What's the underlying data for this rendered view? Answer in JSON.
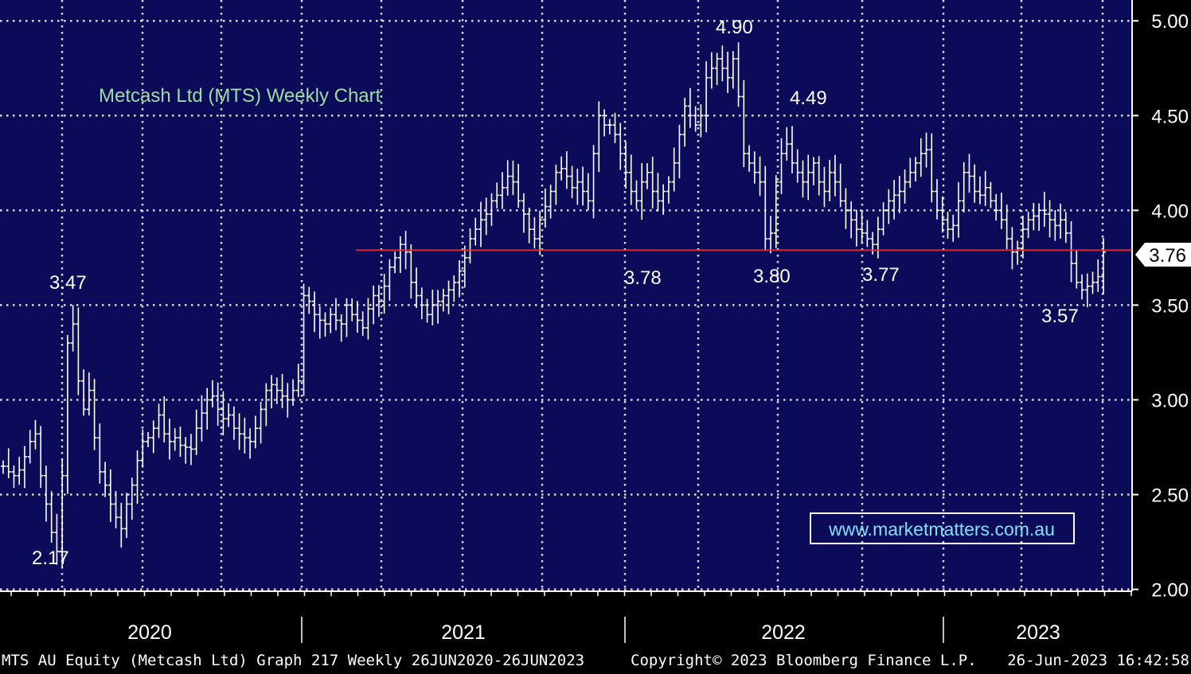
{
  "colors": {
    "plot_bg": "#0b0b5a",
    "page_bg": "#000000",
    "grid": "#d8d8d8",
    "bars": "#ffffff",
    "support_line": "#e03030",
    "title": "#9fdc9f",
    "url": "#7fe0ff",
    "text": "#ffffff"
  },
  "chart_data": {
    "type": "ohlc",
    "title": "Metcash Ltd (MTS) Weekly Chart",
    "watermark": "www.marketmatters.com.au",
    "y_axis": {
      "ylim": [
        1.99,
        5.11
      ],
      "ticks": [
        "5.00",
        "4.50",
        "4.00",
        "3.50",
        "3.00",
        "2.50",
        "2.00"
      ],
      "side": "right"
    },
    "x_axis": {
      "year_labels": [
        "2020",
        "2021",
        "2022",
        "2023"
      ],
      "period": "Weekly 26JUN2020-26JUN2023"
    },
    "grid": true,
    "last_price": "3.76",
    "support_level": 3.79,
    "annotations": [
      "4.90",
      "4.49",
      "3.47",
      "2.17",
      "3.78",
      "3.80",
      "3.77",
      "3.57"
    ],
    "series": {
      "closes": [
        2.65,
        2.62,
        2.6,
        2.63,
        2.7,
        2.78,
        2.82,
        2.6,
        2.45,
        2.3,
        2.2,
        2.6,
        3.3,
        3.4,
        3.1,
        2.95,
        3.05,
        2.8,
        2.62,
        2.55,
        2.45,
        2.38,
        2.32,
        2.45,
        2.55,
        2.68,
        2.78,
        2.8,
        2.85,
        2.92,
        2.82,
        2.78,
        2.8,
        2.76,
        2.75,
        2.74,
        2.85,
        2.93,
        3.0,
        3.02,
        2.95,
        2.9,
        2.92,
        2.85,
        2.82,
        2.8,
        2.78,
        2.85,
        2.95,
        3.05,
        3.08,
        3.05,
        3.02,
        3.0,
        3.05,
        3.1,
        3.55,
        3.52,
        3.45,
        3.42,
        3.4,
        3.45,
        3.42,
        3.4,
        3.5,
        3.45,
        3.42,
        3.38,
        3.48,
        3.55,
        3.52,
        3.6,
        3.7,
        3.75,
        3.82,
        3.78,
        3.62,
        3.55,
        3.5,
        3.45,
        3.5,
        3.52,
        3.55,
        3.58,
        3.62,
        3.68,
        3.75,
        3.85,
        3.9,
        3.95,
        3.98,
        4.05,
        4.08,
        4.12,
        4.18,
        4.15,
        4.05,
        3.98,
        3.9,
        3.85,
        3.95,
        4.02,
        4.1,
        4.2,
        4.22,
        4.18,
        4.12,
        4.15,
        4.1,
        4.05,
        4.3,
        4.5,
        4.45,
        4.45,
        4.4,
        4.3,
        4.2,
        4.1,
        4.05,
        4.15,
        4.2,
        4.1,
        4.05,
        4.1,
        4.15,
        4.25,
        4.4,
        4.55,
        4.5,
        4.45,
        4.5,
        4.7,
        4.75,
        4.8,
        4.75,
        4.7,
        4.8,
        4.6,
        4.3,
        4.25,
        4.2,
        4.15,
        3.85,
        3.88,
        4.15,
        4.3,
        4.35,
        4.25,
        4.2,
        4.15,
        4.2,
        4.25,
        4.15,
        4.1,
        4.2,
        4.15,
        4.05,
        4.0,
        3.95,
        3.9,
        3.88,
        3.85,
        3.82,
        3.9,
        4.0,
        4.05,
        4.08,
        4.1,
        4.15,
        4.2,
        4.25,
        4.3,
        4.32,
        4.1,
        4.0,
        3.95,
        3.9,
        3.92,
        4.05,
        4.2,
        4.18,
        4.1,
        4.08,
        4.12,
        4.05,
        4.0,
        3.95,
        3.85,
        3.78,
        3.8,
        3.9,
        3.95,
        3.97,
        4.0,
        3.98,
        3.95,
        3.92,
        3.95,
        3.88,
        3.72,
        3.62,
        3.58,
        3.6,
        3.62,
        3.65,
        3.78
      ]
    }
  },
  "footer": {
    "left": "MTS AU Equity (Metcash Ltd) Graph 217  Weekly 26JUN2020-26JUN2023",
    "center": "Copyright© 2023 Bloomberg Finance L.P.",
    "right": "26-Jun-2023 16:42:58"
  }
}
